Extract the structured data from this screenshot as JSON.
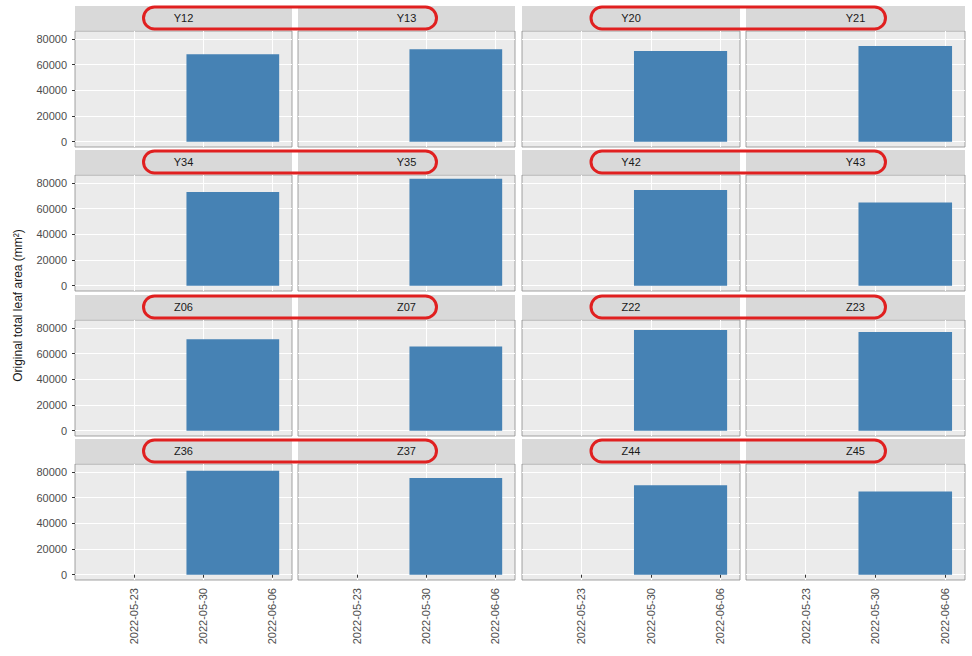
{
  "chart_data": {
    "type": "bar",
    "ylabel": "Original total leaf area (mm²)",
    "color": "#4682B4",
    "grid": true,
    "xlim": [
      "2022-05-17",
      "2022-06-08"
    ],
    "xticks": [
      "2022-05-23",
      "2022-05-30",
      "2022-06-06"
    ],
    "ylim": [
      -4100,
      86100
    ],
    "yticks": [
      0,
      20000,
      40000,
      60000,
      80000
    ],
    "panels": [
      {
        "title": "Y12",
        "x": [
          "2022-06-02"
        ],
        "values": [
          68000
        ]
      },
      {
        "title": "Y13",
        "x": [
          "2022-06-02"
        ],
        "values": [
          72000
        ]
      },
      {
        "title": "Y20",
        "x": [
          "2022-06-02"
        ],
        "values": [
          70500
        ]
      },
      {
        "title": "Y21",
        "x": [
          "2022-06-02"
        ],
        "values": [
          74400
        ]
      },
      {
        "title": "Y34",
        "x": [
          "2022-06-02"
        ],
        "values": [
          72800
        ]
      },
      {
        "title": "Y35",
        "x": [
          "2022-06-02"
        ],
        "values": [
          83200
        ]
      },
      {
        "title": "Y42",
        "x": [
          "2022-06-02"
        ],
        "values": [
          74400
        ]
      },
      {
        "title": "Y43",
        "x": [
          "2022-06-02"
        ],
        "values": [
          64800
        ]
      },
      {
        "title": "Z06",
        "x": [
          "2022-06-02"
        ],
        "values": [
          71100
        ]
      },
      {
        "title": "Z07",
        "x": [
          "2022-06-02"
        ],
        "values": [
          65400
        ]
      },
      {
        "title": "Z22",
        "x": [
          "2022-06-02"
        ],
        "values": [
          78400
        ]
      },
      {
        "title": "Z23",
        "x": [
          "2022-06-02"
        ],
        "values": [
          76800
        ]
      },
      {
        "title": "Z36",
        "x": [
          "2022-06-02"
        ],
        "values": [
          80800
        ]
      },
      {
        "title": "Z37",
        "x": [
          "2022-06-02"
        ],
        "values": [
          75200
        ]
      },
      {
        "title": "Z44",
        "x": [
          "2022-06-02"
        ],
        "values": [
          69600
        ]
      },
      {
        "title": "Z45",
        "x": [
          "2022-06-02"
        ],
        "values": [
          64800
        ]
      }
    ]
  }
}
